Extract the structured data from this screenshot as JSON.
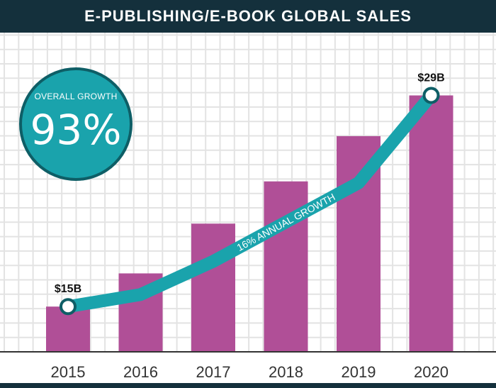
{
  "header": {
    "title": "E-PUBLISHING/E-BOOK GLOBAL SALES"
  },
  "badge": {
    "label": "OVERALL GROWTH",
    "value": "93%"
  },
  "colors": {
    "bar": "#b04f97",
    "line": "#1aa3ac",
    "header": "#14303c",
    "grid": "#e3e3e3"
  },
  "chart_data": {
    "type": "bar",
    "categories": [
      "2015",
      "2016",
      "2017",
      "2018",
      "2019",
      "2020"
    ],
    "values": [
      15,
      17.2,
      20.5,
      23.3,
      26.3,
      29
    ],
    "ylim": [
      12,
      31
    ],
    "grid": true,
    "series": [
      {
        "values": [
          15,
          17.2,
          20.5,
          23.3,
          26.3,
          29
        ]
      }
    ],
    "line": {
      "label": "16% ANNUAL GROWTH",
      "values": [
        15,
        15.8,
        18,
        20.6,
        23.2,
        29
      ]
    },
    "annotations": [
      {
        "category": "2015",
        "text": "$15B"
      },
      {
        "category": "2020",
        "text": "$29B"
      }
    ]
  }
}
